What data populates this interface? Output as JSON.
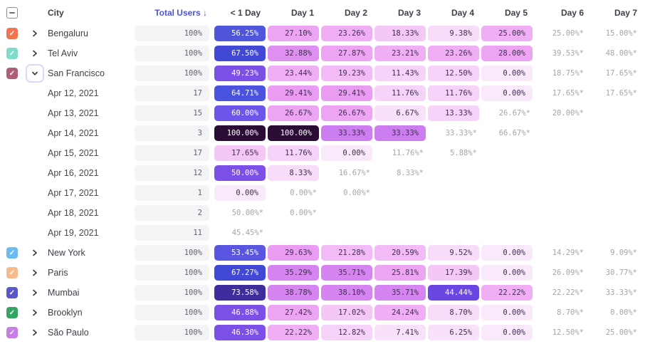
{
  "header": {
    "columns": [
      "City",
      "Total Users ↓",
      "< 1 Day",
      "Day 1",
      "Day 2",
      "Day 3",
      "Day 4",
      "Day 5",
      "Day 6",
      "Day 7"
    ],
    "sort_color": "#4C55D2"
  },
  "heat_scale": [
    {
      "max": 5,
      "bg": "#FAE9FB",
      "fg": "#3E2F4F"
    },
    {
      "max": 8,
      "bg": "#F9E1FA",
      "fg": "#3E2F4F"
    },
    {
      "max": 10,
      "bg": "#F8DCF9",
      "fg": "#3E2F4F"
    },
    {
      "max": 14,
      "bg": "#F6D3F8",
      "fg": "#3E2F4F"
    },
    {
      "max": 19,
      "bg": "#F4C7F7",
      "fg": "#3E2F4F"
    },
    {
      "max": 22,
      "bg": "#F2BAF6",
      "fg": "#3E2F4F"
    },
    {
      "max": 25,
      "bg": "#F0AFF5",
      "fg": "#3E2F4F"
    },
    {
      "max": 28,
      "bg": "#EDA4F3",
      "fg": "#3E2F4F"
    },
    {
      "max": 31,
      "bg": "#EA9BF2",
      "fg": "#3E2F4F"
    },
    {
      "max": 33,
      "bg": "#DE8FEF",
      "fg": "#3E2F4F"
    },
    {
      "max": 34,
      "bg": "#CC7EF0",
      "fg": "#3E2F4F"
    },
    {
      "max": 41,
      "bg": "#D685F0",
      "fg": "#3E2F4F"
    },
    {
      "max": 45,
      "bg": "#6A46E3",
      "fg": "#FFFFFF"
    },
    {
      "max": 52,
      "bg": "#7C50E7",
      "fg": "#FFFFFF"
    },
    {
      "max": 54,
      "bg": "#5A55E0",
      "fg": "#FFFFFF"
    },
    {
      "max": 58,
      "bg": "#5056DC",
      "fg": "#FFFFFF"
    },
    {
      "max": 62,
      "bg": "#6C55E9",
      "fg": "#FFFFFF"
    },
    {
      "max": 66,
      "bg": "#4A52E0",
      "fg": "#FFFFFF"
    },
    {
      "max": 70,
      "bg": "#4148D6",
      "fg": "#FFFFFF"
    },
    {
      "max": 85,
      "bg": "#3F2D9E",
      "fg": "#FFFFFF"
    },
    {
      "max": 100,
      "bg": "#2B0C34",
      "fg": "#FFFFFF"
    }
  ],
  "rows": [
    {
      "type": "city",
      "label": "Bengaluru",
      "checkbox_color": "#F4734F",
      "expanded": false,
      "total": "100%",
      "cells": [
        {
          "text": "56.25%",
          "value": 56.25
        },
        {
          "text": "27.10%",
          "value": 27.1
        },
        {
          "text": "23.26%",
          "value": 23.26
        },
        {
          "text": "18.33%",
          "value": 18.33
        },
        {
          "text": "9.38%",
          "value": 9.38
        },
        {
          "text": "25.00%",
          "value": 25.0
        },
        {
          "text": "25.00%*",
          "est": true
        },
        {
          "text": "15.00%*",
          "est": true
        }
      ]
    },
    {
      "type": "city",
      "label": "Tel Aviv",
      "checkbox_color": "#7EDCC8",
      "expanded": false,
      "total": "100%",
      "cells": [
        {
          "text": "67.50%",
          "value": 67.5
        },
        {
          "text": "32.88%",
          "value": 32.88
        },
        {
          "text": "27.87%",
          "value": 27.87
        },
        {
          "text": "23.21%",
          "value": 23.21
        },
        {
          "text": "23.26%",
          "value": 23.26
        },
        {
          "text": "28.00%",
          "value": 28.0
        },
        {
          "text": "39.53%*",
          "est": true
        },
        {
          "text": "48.00%*",
          "est": true
        }
      ]
    },
    {
      "type": "city",
      "label": "San Francisco",
      "checkbox_color": "#B05E76",
      "expanded": true,
      "total": "100%",
      "cells": [
        {
          "text": "49.23%",
          "value": 49.23
        },
        {
          "text": "23.44%",
          "value": 23.44
        },
        {
          "text": "19.23%",
          "value": 19.23
        },
        {
          "text": "11.43%",
          "value": 11.43
        },
        {
          "text": "12.50%",
          "value": 12.5
        },
        {
          "text": "0.00%",
          "value": 0.0
        },
        {
          "text": "18.75%*",
          "est": true
        },
        {
          "text": "17.65%*",
          "est": true
        }
      ]
    },
    {
      "type": "date",
      "label": "Apr 12, 2021",
      "total": "17",
      "cells": [
        {
          "text": "64.71%",
          "value": 64.71
        },
        {
          "text": "29.41%",
          "value": 29.41
        },
        {
          "text": "29.41%",
          "value": 29.41
        },
        {
          "text": "11.76%",
          "value": 11.76
        },
        {
          "text": "11.76%",
          "value": 11.76
        },
        {
          "text": "0.00%",
          "value": 0.0
        },
        {
          "text": "17.65%*",
          "est": true
        },
        {
          "text": "17.65%*",
          "est": true
        }
      ]
    },
    {
      "type": "date",
      "label": "Apr 13, 2021",
      "total": "15",
      "cells": [
        {
          "text": "60.00%",
          "value": 60.0
        },
        {
          "text": "26.67%",
          "value": 26.67
        },
        {
          "text": "26.67%",
          "value": 26.67
        },
        {
          "text": "6.67%",
          "value": 6.67
        },
        {
          "text": "13.33%",
          "value": 13.33
        },
        {
          "text": "26.67%*",
          "est": true
        },
        {
          "text": "20.00%*",
          "est": true
        },
        null
      ]
    },
    {
      "type": "date",
      "label": "Apr 14, 2021",
      "total": "3",
      "cells": [
        {
          "text": "100.00%",
          "value": 100.0
        },
        {
          "text": "100.00%",
          "value": 100.0
        },
        {
          "text": "33.33%",
          "value": 33.33
        },
        {
          "text": "33.33%",
          "value": 33.33
        },
        {
          "text": "33.33%*",
          "est": true
        },
        {
          "text": "66.67%*",
          "est": true
        },
        null,
        null
      ]
    },
    {
      "type": "date",
      "label": "Apr 15, 2021",
      "total": "17",
      "cells": [
        {
          "text": "17.65%",
          "value": 17.65
        },
        {
          "text": "11.76%",
          "value": 11.76
        },
        {
          "text": "0.00%",
          "value": 0.0
        },
        {
          "text": "11.76%*",
          "est": true
        },
        {
          "text": "5.88%*",
          "est": true
        },
        null,
        null,
        null
      ]
    },
    {
      "type": "date",
      "label": "Apr 16, 2021",
      "total": "12",
      "cells": [
        {
          "text": "50.00%",
          "value": 50.0
        },
        {
          "text": "8.33%",
          "value": 8.33
        },
        {
          "text": "16.67%*",
          "est": true
        },
        {
          "text": "8.33%*",
          "est": true
        },
        null,
        null,
        null,
        null
      ]
    },
    {
      "type": "date",
      "label": "Apr 17, 2021",
      "total": "1",
      "cells": [
        {
          "text": "0.00%",
          "value": 0.0
        },
        {
          "text": "0.00%*",
          "est": true
        },
        {
          "text": "0.00%*",
          "est": true
        },
        null,
        null,
        null,
        null,
        null
      ]
    },
    {
      "type": "date",
      "label": "Apr 18, 2021",
      "total": "2",
      "cells": [
        {
          "text": "50.00%*",
          "est": true
        },
        {
          "text": "0.00%*",
          "est": true
        },
        null,
        null,
        null,
        null,
        null,
        null
      ]
    },
    {
      "type": "date",
      "label": "Apr 19, 2021",
      "total": "11",
      "cells": [
        {
          "text": "45.45%*",
          "est": true
        },
        null,
        null,
        null,
        null,
        null,
        null,
        null
      ]
    },
    {
      "type": "city",
      "label": "New York",
      "checkbox_color": "#6CBCF2",
      "expanded": false,
      "total": "100%",
      "cells": [
        {
          "text": "53.45%",
          "value": 53.45
        },
        {
          "text": "29.63%",
          "value": 29.63
        },
        {
          "text": "21.28%",
          "value": 21.28
        },
        {
          "text": "20.59%",
          "value": 20.59
        },
        {
          "text": "9.52%",
          "value": 9.52
        },
        {
          "text": "0.00%",
          "value": 0.0
        },
        {
          "text": "14.29%*",
          "est": true
        },
        {
          "text": "9.09%*",
          "est": true
        }
      ]
    },
    {
      "type": "city",
      "label": "Paris",
      "checkbox_color": "#F8BA8B",
      "expanded": false,
      "total": "100%",
      "cells": [
        {
          "text": "67.27%",
          "value": 67.27
        },
        {
          "text": "35.29%",
          "value": 35.29
        },
        {
          "text": "35.71%",
          "value": 35.71
        },
        {
          "text": "25.81%",
          "value": 25.81
        },
        {
          "text": "17.39%",
          "value": 17.39
        },
        {
          "text": "0.00%",
          "value": 0.0
        },
        {
          "text": "26.09%*",
          "est": true
        },
        {
          "text": "30.77%*",
          "est": true
        }
      ]
    },
    {
      "type": "city",
      "label": "Mumbai",
      "checkbox_color": "#5B57C8",
      "expanded": false,
      "total": "100%",
      "cells": [
        {
          "text": "73.58%",
          "value": 73.58
        },
        {
          "text": "38.78%",
          "value": 38.78
        },
        {
          "text": "38.10%",
          "value": 38.1
        },
        {
          "text": "35.71%",
          "value": 35.71
        },
        {
          "text": "44.44%",
          "value": 44.44
        },
        {
          "text": "22.22%",
          "value": 22.22
        },
        {
          "text": "22.22%*",
          "est": true
        },
        {
          "text": "33.33%*",
          "est": true
        }
      ]
    },
    {
      "type": "city",
      "label": "Brooklyn",
      "checkbox_color": "#33A564",
      "expanded": false,
      "total": "100%",
      "cells": [
        {
          "text": "46.88%",
          "value": 46.88
        },
        {
          "text": "27.42%",
          "value": 27.42
        },
        {
          "text": "17.02%",
          "value": 17.02
        },
        {
          "text": "24.24%",
          "value": 24.24
        },
        {
          "text": "8.70%",
          "value": 8.7
        },
        {
          "text": "0.00%",
          "value": 0.0
        },
        {
          "text": "8.70%*",
          "est": true
        },
        {
          "text": "0.00%*",
          "est": true
        }
      ]
    },
    {
      "type": "city",
      "label": "São Paulo",
      "checkbox_color": "#C77EE5",
      "expanded": false,
      "total": "100%",
      "cells": [
        {
          "text": "46.30%",
          "value": 46.3
        },
        {
          "text": "22.22%",
          "value": 22.22
        },
        {
          "text": "12.82%",
          "value": 12.82
        },
        {
          "text": "7.41%",
          "value": 7.41
        },
        {
          "text": "6.25%",
          "value": 6.25
        },
        {
          "text": "0.00%",
          "value": 0.0
        },
        {
          "text": "12.50%*",
          "est": true
        },
        {
          "text": "25.00%*",
          "est": true
        }
      ]
    }
  ]
}
